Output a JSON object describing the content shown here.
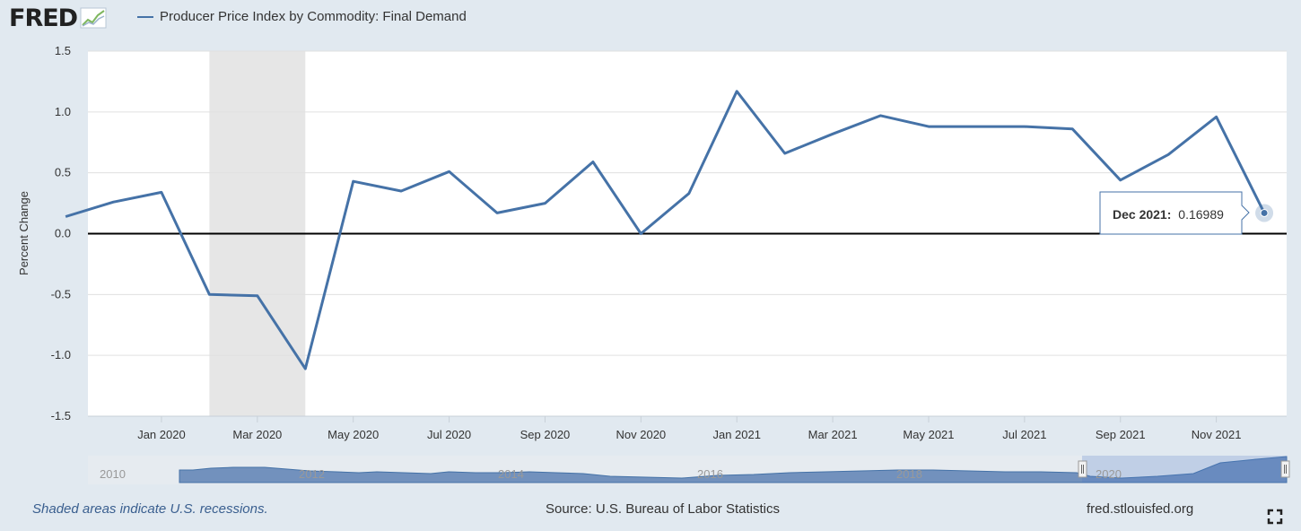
{
  "header": {
    "logo_text": "FRED",
    "legend_label": "Producer Price Index by Commodity: Final Demand"
  },
  "footer": {
    "recession_note": "Shaded areas indicate U.S. recessions.",
    "source": "Source: U.S. Bureau of Labor Statistics",
    "url": "fred.stlouisfed.org"
  },
  "tooltip": {
    "date": "Dec 2021:",
    "value": "0.16989"
  },
  "icons": {
    "fullscreen": "fullscreen-icon",
    "logo_graph": "fred-graph-icon"
  },
  "colors": {
    "series": "#4572a7",
    "background": "#e1e9f0",
    "plot": "#ffffff",
    "recession": "#e6e6e6",
    "zero_line": "#000000",
    "grid": "#e0e0e0"
  },
  "chart_data": {
    "type": "line",
    "title": "",
    "ylabel": "Percent Change",
    "xlabel": "",
    "ylim": [
      -1.5,
      1.5
    ],
    "yticks": [
      "1.5",
      "1.0",
      "0.5",
      "0.0",
      "-0.5",
      "-1.0",
      "-1.5"
    ],
    "ytick_values": [
      1.5,
      1.0,
      0.5,
      0.0,
      -0.5,
      -1.0,
      -1.5
    ],
    "xtick_labels": [
      "Jan 2020",
      "Mar 2020",
      "May 2020",
      "Jul 2020",
      "Sep 2020",
      "Nov 2020",
      "Jan 2021",
      "Mar 2021",
      "May 2021",
      "Jul 2021",
      "Sep 2021",
      "Nov 2021"
    ],
    "xtick_dates": [
      "2020-01",
      "2020-03",
      "2020-05",
      "2020-07",
      "2020-09",
      "2020-11",
      "2021-01",
      "2021-03",
      "2021-05",
      "2021-07",
      "2021-09",
      "2021-11"
    ],
    "xlim": [
      "2019-11-15",
      "2021-12-15"
    ],
    "grid": true,
    "legend_position": "top-left",
    "recessions": [
      {
        "start": "2020-02",
        "end": "2020-04"
      }
    ],
    "series": [
      {
        "name": "Producer Price Index by Commodity: Final Demand",
        "x": [
          "2019-11",
          "2019-12",
          "2020-01",
          "2020-02",
          "2020-03",
          "2020-04",
          "2020-05",
          "2020-06",
          "2020-07",
          "2020-08",
          "2020-09",
          "2020-10",
          "2020-11",
          "2020-12",
          "2021-01",
          "2021-02",
          "2021-03",
          "2021-04",
          "2021-05",
          "2021-06",
          "2021-07",
          "2021-08",
          "2021-09",
          "2021-10",
          "2021-11",
          "2021-12"
        ],
        "values": [
          0.14,
          0.26,
          0.34,
          -0.5,
          -0.51,
          -1.11,
          0.43,
          0.35,
          0.51,
          0.17,
          0.25,
          0.59,
          0.0,
          0.33,
          1.17,
          0.66,
          0.82,
          0.97,
          0.88,
          0.88,
          0.88,
          0.86,
          0.44,
          0.65,
          0.96,
          0.16989
        ]
      }
    ],
    "navigator": {
      "labels": [
        "2010",
        "2012",
        "2014",
        "2016",
        "2018",
        "2020"
      ]
    }
  }
}
